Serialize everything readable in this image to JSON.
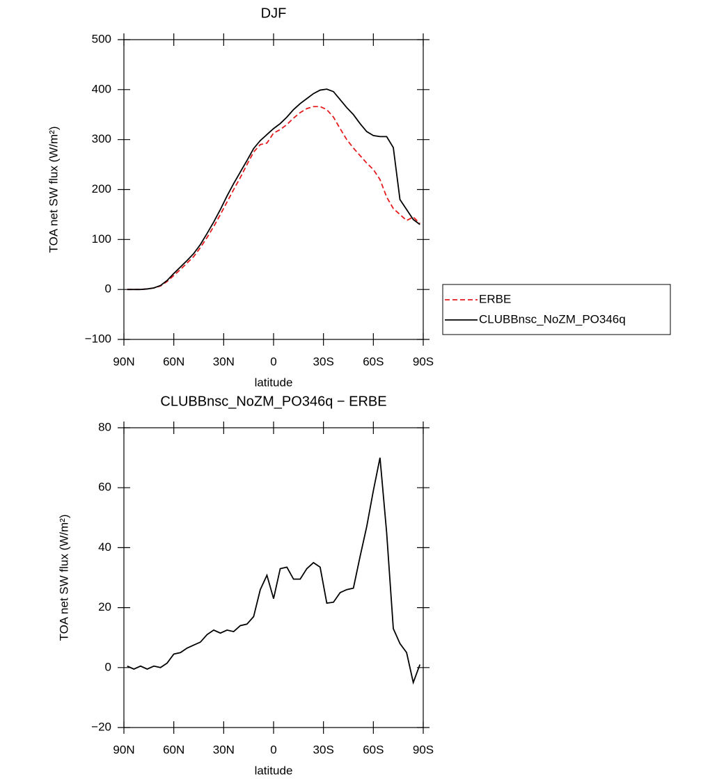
{
  "chart_data": [
    {
      "type": "line",
      "title": "DJF",
      "xlabel": "latitude",
      "ylabel": "TOA net SW flux (W/m²)",
      "x": [
        88,
        84,
        80,
        76,
        72,
        68,
        64,
        60,
        56,
        52,
        48,
        44,
        40,
        36,
        32,
        28,
        24,
        20,
        16,
        12,
        8,
        4,
        0,
        -4,
        -8,
        -12,
        -16,
        -20,
        -24,
        -28,
        -32,
        -36,
        -40,
        -44,
        -48,
        -52,
        -56,
        -60,
        -64,
        -68,
        -72,
        -76,
        -80,
        -84,
        -88
      ],
      "series": [
        {
          "name": "ERBE",
          "color": "#e41a1c",
          "style": "dashed",
          "values": [
            0,
            0,
            0,
            1,
            3,
            7,
            16,
            28,
            40,
            53,
            66,
            84,
            104,
            126,
            150,
            175,
            200,
            224,
            250,
            275,
            290,
            293,
            313,
            320,
            330,
            343,
            354,
            362,
            366,
            366,
            360,
            345,
            322,
            300,
            283,
            268,
            253,
            240,
            220,
            185,
            162,
            150,
            138,
            145,
            132
          ]
        },
        {
          "name": "CLUBBnsc_NoZM_PO346q",
          "color": "#000000",
          "style": "solid",
          "values": [
            0,
            0,
            0,
            1,
            3,
            8,
            18,
            32,
            45,
            58,
            72,
            90,
            112,
            135,
            160,
            187,
            212,
            235,
            258,
            282,
            298,
            310,
            322,
            332,
            345,
            360,
            372,
            382,
            392,
            399,
            401,
            396,
            380,
            364,
            350,
            332,
            316,
            308,
            306,
            306,
            284,
            180,
            160,
            140,
            130
          ]
        }
      ],
      "xlim": [
        90,
        -90
      ],
      "xticks": [
        {
          "value": 90,
          "label": "90N"
        },
        {
          "value": 60,
          "label": "60N"
        },
        {
          "value": 30,
          "label": "30N"
        },
        0,
        {
          "value": -30,
          "label": "30S"
        },
        {
          "value": -60,
          "label": "60S"
        },
        {
          "value": -90,
          "label": "90S"
        }
      ],
      "ylim": [
        -100,
        500
      ],
      "yticks": [
        {
          "value": -100,
          "label": "−100"
        },
        0,
        100,
        200,
        300,
        400,
        500
      ],
      "legend": "right"
    },
    {
      "type": "line",
      "title": "CLUBBnsc_NoZM_PO346q − ERBE",
      "xlabel": "latitude",
      "ylabel": "TOA net SW flux (W/m²)",
      "x": [
        88,
        84,
        80,
        76,
        72,
        68,
        64,
        60,
        56,
        52,
        48,
        44,
        40,
        36,
        32,
        28,
        24,
        20,
        16,
        12,
        8,
        4,
        0,
        -4,
        -8,
        -12,
        -16,
        -20,
        -24,
        -28,
        -32,
        -36,
        -40,
        -44,
        -48,
        -52,
        -56,
        -60,
        -64,
        -68,
        -72,
        -76,
        -80,
        -84,
        -88
      ],
      "values": [
        0.5,
        -0.5,
        0.5,
        -0.5,
        0.5,
        0,
        1.5,
        4.5,
        5,
        6.5,
        7.5,
        8.5,
        11,
        12.5,
        11.5,
        12.5,
        12,
        14,
        14.5,
        17,
        26,
        30.8,
        23,
        33,
        33.5,
        29.5,
        29.5,
        33,
        35,
        33.5,
        21.5,
        21.8,
        25,
        26,
        26.5,
        37,
        47,
        59,
        70,
        45,
        13,
        8,
        5,
        -5,
        1
      ],
      "color": "#000000",
      "xlim": [
        90,
        -90
      ],
      "xticks": [
        {
          "value": 90,
          "label": "90N"
        },
        {
          "value": 60,
          "label": "60N"
        },
        {
          "value": 30,
          "label": "30N"
        },
        0,
        {
          "value": -30,
          "label": "30S"
        },
        {
          "value": -60,
          "label": "60S"
        },
        {
          "value": -90,
          "label": "90S"
        }
      ],
      "ylim": [
        -20,
        80
      ],
      "yticks": [
        {
          "value": -20,
          "label": "−20"
        },
        0,
        20,
        40,
        60,
        80
      ]
    }
  ]
}
